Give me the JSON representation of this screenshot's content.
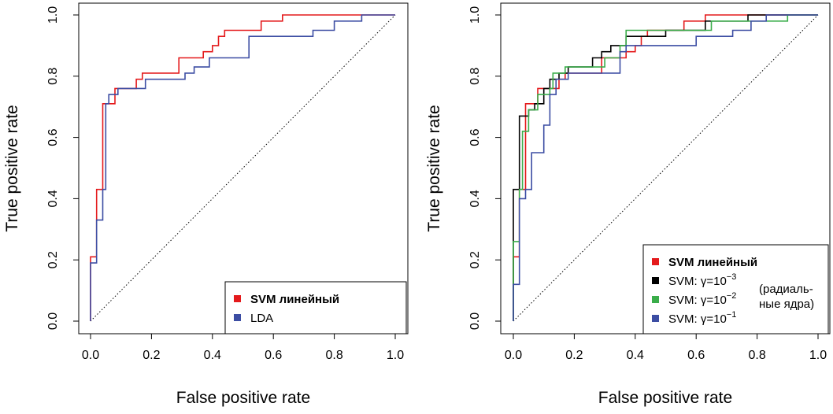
{
  "chart_data": [
    {
      "type": "line",
      "xlabel": "False positive rate",
      "ylabel": "True positive rate",
      "xlim": [
        0,
        1
      ],
      "ylim": [
        0,
        1
      ],
      "xticks": [
        "0.0",
        "0.2",
        "0.4",
        "0.6",
        "0.8",
        "1.0"
      ],
      "yticks": [
        "0.0",
        "0.2",
        "0.4",
        "0.6",
        "0.8",
        "1.0"
      ],
      "grid": false,
      "legend_position": "bottom-right",
      "diagonal": true,
      "series": [
        {
          "name": "SVM линейный",
          "color": "#e41a1c",
          "bold": true,
          "points": [
            [
              0,
              0
            ],
            [
              0,
              0.21
            ],
            [
              0.02,
              0.21
            ],
            [
              0.02,
              0.43
            ],
            [
              0.04,
              0.43
            ],
            [
              0.04,
              0.71
            ],
            [
              0.08,
              0.71
            ],
            [
              0.08,
              0.76
            ],
            [
              0.15,
              0.76
            ],
            [
              0.15,
              0.79
            ],
            [
              0.17,
              0.79
            ],
            [
              0.17,
              0.81
            ],
            [
              0.29,
              0.81
            ],
            [
              0.29,
              0.86
            ],
            [
              0.37,
              0.86
            ],
            [
              0.37,
              0.88
            ],
            [
              0.4,
              0.88
            ],
            [
              0.4,
              0.9
            ],
            [
              0.42,
              0.9
            ],
            [
              0.42,
              0.93
            ],
            [
              0.44,
              0.93
            ],
            [
              0.44,
              0.95
            ],
            [
              0.56,
              0.95
            ],
            [
              0.56,
              0.98
            ],
            [
              0.63,
              0.98
            ],
            [
              0.63,
              1.0
            ],
            [
              1.0,
              1.0
            ]
          ]
        },
        {
          "name": "LDA",
          "color": "#3c4da3",
          "bold": false,
          "points": [
            [
              0,
              0
            ],
            [
              0,
              0.19
            ],
            [
              0.02,
              0.19
            ],
            [
              0.02,
              0.33
            ],
            [
              0.04,
              0.33
            ],
            [
              0.04,
              0.43
            ],
            [
              0.05,
              0.43
            ],
            [
              0.05,
              0.71
            ],
            [
              0.06,
              0.71
            ],
            [
              0.06,
              0.74
            ],
            [
              0.09,
              0.74
            ],
            [
              0.09,
              0.76
            ],
            [
              0.18,
              0.76
            ],
            [
              0.18,
              0.79
            ],
            [
              0.31,
              0.79
            ],
            [
              0.31,
              0.81
            ],
            [
              0.34,
              0.81
            ],
            [
              0.34,
              0.83
            ],
            [
              0.39,
              0.83
            ],
            [
              0.39,
              0.86
            ],
            [
              0.52,
              0.86
            ],
            [
              0.52,
              0.93
            ],
            [
              0.73,
              0.93
            ],
            [
              0.73,
              0.95
            ],
            [
              0.8,
              0.95
            ],
            [
              0.8,
              0.98
            ],
            [
              0.89,
              0.98
            ],
            [
              0.89,
              1.0
            ],
            [
              1.0,
              1.0
            ]
          ]
        }
      ]
    },
    {
      "type": "line",
      "xlabel": "False positive rate",
      "ylabel": "True positive rate",
      "xlim": [
        0,
        1
      ],
      "ylim": [
        0,
        1
      ],
      "xticks": [
        "0.0",
        "0.2",
        "0.4",
        "0.6",
        "0.8",
        "1.0"
      ],
      "yticks": [
        "0.0",
        "0.2",
        "0.4",
        "0.6",
        "0.8",
        "1.0"
      ],
      "grid": false,
      "legend_position": "bottom-right",
      "diagonal": true,
      "legend_note": [
        "(радиаль-",
        "ные ядра)"
      ],
      "series": [
        {
          "name": "SVM линейный",
          "label_parts": [
            "SVM линейный"
          ],
          "color": "#e41a1c",
          "bold": true,
          "points": [
            [
              0,
              0
            ],
            [
              0,
              0.21
            ],
            [
              0.02,
              0.21
            ],
            [
              0.02,
              0.43
            ],
            [
              0.04,
              0.43
            ],
            [
              0.04,
              0.71
            ],
            [
              0.08,
              0.71
            ],
            [
              0.08,
              0.76
            ],
            [
              0.15,
              0.76
            ],
            [
              0.15,
              0.79
            ],
            [
              0.17,
              0.79
            ],
            [
              0.17,
              0.81
            ],
            [
              0.29,
              0.81
            ],
            [
              0.29,
              0.86
            ],
            [
              0.37,
              0.86
            ],
            [
              0.37,
              0.88
            ],
            [
              0.4,
              0.88
            ],
            [
              0.4,
              0.9
            ],
            [
              0.42,
              0.9
            ],
            [
              0.42,
              0.93
            ],
            [
              0.44,
              0.93
            ],
            [
              0.44,
              0.95
            ],
            [
              0.56,
              0.95
            ],
            [
              0.56,
              0.98
            ],
            [
              0.63,
              0.98
            ],
            [
              0.63,
              1.0
            ],
            [
              1.0,
              1.0
            ]
          ]
        },
        {
          "name": "SVM: γ=10⁻³",
          "label_parts": [
            "SVM: γ=10",
            "−3"
          ],
          "color": "#000000",
          "bold": false,
          "points": [
            [
              0,
              0
            ],
            [
              0,
              0.43
            ],
            [
              0.02,
              0.43
            ],
            [
              0.02,
              0.67
            ],
            [
              0.05,
              0.67
            ],
            [
              0.05,
              0.69
            ],
            [
              0.07,
              0.69
            ],
            [
              0.07,
              0.71
            ],
            [
              0.1,
              0.71
            ],
            [
              0.1,
              0.76
            ],
            [
              0.12,
              0.76
            ],
            [
              0.12,
              0.79
            ],
            [
              0.15,
              0.79
            ],
            [
              0.15,
              0.81
            ],
            [
              0.18,
              0.81
            ],
            [
              0.18,
              0.83
            ],
            [
              0.26,
              0.83
            ],
            [
              0.26,
              0.86
            ],
            [
              0.29,
              0.86
            ],
            [
              0.29,
              0.88
            ],
            [
              0.32,
              0.88
            ],
            [
              0.32,
              0.9
            ],
            [
              0.37,
              0.9
            ],
            [
              0.37,
              0.93
            ],
            [
              0.5,
              0.93
            ],
            [
              0.5,
              0.95
            ],
            [
              0.63,
              0.95
            ],
            [
              0.63,
              0.98
            ],
            [
              0.77,
              0.98
            ],
            [
              0.77,
              1.0
            ],
            [
              1.0,
              1.0
            ]
          ]
        },
        {
          "name": "SVM: γ=10⁻²",
          "label_parts": [
            "SVM: γ=10",
            "−2"
          ],
          "color": "#3aad4a",
          "bold": false,
          "points": [
            [
              0,
              0
            ],
            [
              0,
              0.26
            ],
            [
              0.02,
              0.26
            ],
            [
              0.02,
              0.43
            ],
            [
              0.03,
              0.43
            ],
            [
              0.03,
              0.62
            ],
            [
              0.05,
              0.62
            ],
            [
              0.05,
              0.69
            ],
            [
              0.08,
              0.69
            ],
            [
              0.08,
              0.74
            ],
            [
              0.12,
              0.74
            ],
            [
              0.12,
              0.76
            ],
            [
              0.13,
              0.76
            ],
            [
              0.13,
              0.81
            ],
            [
              0.17,
              0.81
            ],
            [
              0.17,
              0.83
            ],
            [
              0.3,
              0.83
            ],
            [
              0.3,
              0.86
            ],
            [
              0.35,
              0.86
            ],
            [
              0.35,
              0.9
            ],
            [
              0.37,
              0.9
            ],
            [
              0.37,
              0.95
            ],
            [
              0.65,
              0.95
            ],
            [
              0.65,
              0.98
            ],
            [
              0.9,
              0.98
            ],
            [
              0.9,
              1.0
            ],
            [
              1.0,
              1.0
            ]
          ]
        },
        {
          "name": "SVM: γ=10⁻¹",
          "label_parts": [
            "SVM: γ=10",
            "−1"
          ],
          "color": "#3c4da3",
          "bold": false,
          "points": [
            [
              0,
              0
            ],
            [
              0,
              0.12
            ],
            [
              0.02,
              0.12
            ],
            [
              0.02,
              0.4
            ],
            [
              0.04,
              0.4
            ],
            [
              0.04,
              0.43
            ],
            [
              0.06,
              0.43
            ],
            [
              0.06,
              0.55
            ],
            [
              0.1,
              0.55
            ],
            [
              0.1,
              0.64
            ],
            [
              0.12,
              0.64
            ],
            [
              0.12,
              0.74
            ],
            [
              0.14,
              0.74
            ],
            [
              0.14,
              0.79
            ],
            [
              0.18,
              0.79
            ],
            [
              0.18,
              0.81
            ],
            [
              0.35,
              0.81
            ],
            [
              0.35,
              0.88
            ],
            [
              0.37,
              0.88
            ],
            [
              0.37,
              0.9
            ],
            [
              0.6,
              0.9
            ],
            [
              0.6,
              0.93
            ],
            [
              0.72,
              0.93
            ],
            [
              0.72,
              0.95
            ],
            [
              0.78,
              0.95
            ],
            [
              0.78,
              0.98
            ],
            [
              0.83,
              0.98
            ],
            [
              0.83,
              1.0
            ],
            [
              1.0,
              1.0
            ]
          ]
        }
      ]
    }
  ]
}
